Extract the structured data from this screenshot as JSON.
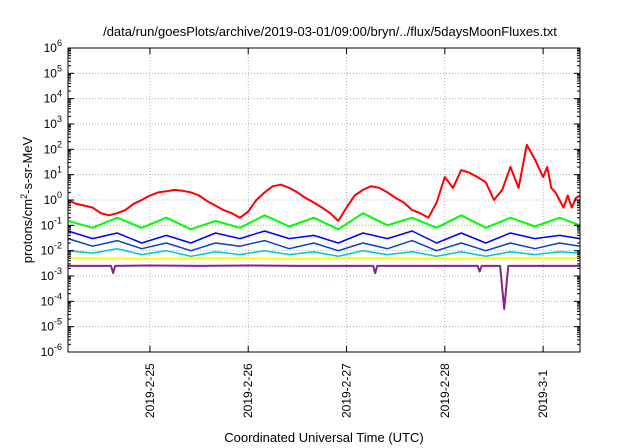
{
  "chart_data": {
    "type": "line",
    "title": "/data/run/goesPlots/archive/2019-03-01/09:00/bryn/../flux/5daysMoonFluxes.txt",
    "xlabel": "Coordinated Universal Time (UTC)",
    "ylabel": {
      "prefix": "protons/cm",
      "superscript": "2",
      "suffix": "-s-sr-MeV"
    },
    "yscale": "log",
    "ylim": [
      1e-06,
      1000000.0
    ],
    "y_ticks": [
      {
        "base": "10",
        "exp": "6",
        "value": 1000000.0
      },
      {
        "base": "10",
        "exp": "5",
        "value": 100000.0
      },
      {
        "base": "10",
        "exp": "4",
        "value": 10000.0
      },
      {
        "base": "10",
        "exp": "3",
        "value": 1000.0
      },
      {
        "base": "10",
        "exp": "2",
        "value": 100.0
      },
      {
        "base": "10",
        "exp": "1",
        "value": 10.0
      },
      {
        "base": "10",
        "exp": "0",
        "value": 1.0
      },
      {
        "base": "10",
        "exp": "-1",
        "value": 0.1
      },
      {
        "base": "10",
        "exp": "-2",
        "value": 0.01
      },
      {
        "base": "10",
        "exp": "-3",
        "value": 0.001
      },
      {
        "base": "10",
        "exp": "-4",
        "value": 0.0001
      },
      {
        "base": "10",
        "exp": "-5",
        "value": 1e-05
      },
      {
        "base": "10",
        "exp": "-6",
        "value": 1e-06
      }
    ],
    "xlim": [
      "2019-02-24 04:00",
      "2019-03-01 09:00"
    ],
    "x_ticks": [
      {
        "label": "2019-2-25",
        "value": "2019-02-25 00:00"
      },
      {
        "label": "2019-2-26",
        "value": "2019-02-26 00:00"
      },
      {
        "label": "2019-2-27",
        "value": "2019-02-27 00:00"
      },
      {
        "label": "2019-2-28",
        "value": "2019-02-28 00:00"
      },
      {
        "label": "2019-3-1",
        "value": "2019-03-01 00:00"
      }
    ],
    "grid": true,
    "series": [
      {
        "color": "#ff0000",
        "width": 2,
        "points": [
          [
            "2019-02-24 04:00",
            1.0
          ],
          [
            "2019-02-24 06:00",
            0.7
          ],
          [
            "2019-02-24 08:00",
            0.6
          ],
          [
            "2019-02-24 10:00",
            0.5
          ],
          [
            "2019-02-24 12:00",
            0.3
          ],
          [
            "2019-02-24 14:00",
            0.25
          ],
          [
            "2019-02-24 16:00",
            0.3
          ],
          [
            "2019-02-24 18:00",
            0.4
          ],
          [
            "2019-02-24 20:00",
            0.7
          ],
          [
            "2019-02-24 22:00",
            1.0
          ],
          [
            "2019-02-25 00:00",
            1.5
          ],
          [
            "2019-02-25 02:00",
            2.0
          ],
          [
            "2019-02-25 04:00",
            2.2
          ],
          [
            "2019-02-25 06:00",
            2.5
          ],
          [
            "2019-02-25 08:00",
            2.3
          ],
          [
            "2019-02-25 10:00",
            2.0
          ],
          [
            "2019-02-25 12:00",
            1.5
          ],
          [
            "2019-02-25 14:00",
            0.9
          ],
          [
            "2019-02-25 16:00",
            0.6
          ],
          [
            "2019-02-25 18:00",
            0.4
          ],
          [
            "2019-02-25 20:00",
            0.3
          ],
          [
            "2019-02-25 22:00",
            0.2
          ],
          [
            "2019-02-26 00:00",
            0.35
          ],
          [
            "2019-02-26 02:00",
            1.0
          ],
          [
            "2019-02-26 04:00",
            2.0
          ],
          [
            "2019-02-26 06:00",
            3.5
          ],
          [
            "2019-02-26 08:00",
            4.0
          ],
          [
            "2019-02-26 10:00",
            3.0
          ],
          [
            "2019-02-26 12:00",
            2.0
          ],
          [
            "2019-02-26 14:00",
            1.2
          ],
          [
            "2019-02-26 16:00",
            0.8
          ],
          [
            "2019-02-26 18:00",
            0.5
          ],
          [
            "2019-02-26 20:00",
            0.3
          ],
          [
            "2019-02-26 22:00",
            0.15
          ],
          [
            "2019-02-27 00:00",
            0.5
          ],
          [
            "2019-02-27 02:00",
            1.5
          ],
          [
            "2019-02-27 04:00",
            2.5
          ],
          [
            "2019-02-27 06:00",
            3.5
          ],
          [
            "2019-02-27 08:00",
            3.0
          ],
          [
            "2019-02-27 10:00",
            2.0
          ],
          [
            "2019-02-27 12:00",
            1.2
          ],
          [
            "2019-02-27 14:00",
            0.8
          ],
          [
            "2019-02-27 16:00",
            0.4
          ],
          [
            "2019-02-27 18:00",
            0.3
          ],
          [
            "2019-02-27 20:00",
            0.2
          ],
          [
            "2019-02-27 22:00",
            0.8
          ],
          [
            "2019-02-28 00:00",
            8
          ],
          [
            "2019-02-28 02:00",
            3
          ],
          [
            "2019-02-28 04:00",
            15
          ],
          [
            "2019-02-28 06:00",
            12
          ],
          [
            "2019-02-28 08:00",
            8
          ],
          [
            "2019-02-28 10:00",
            5
          ],
          [
            "2019-02-28 12:00",
            1.0
          ],
          [
            "2019-02-28 14:00",
            2.5
          ],
          [
            "2019-02-28 16:00",
            20
          ],
          [
            "2019-02-28 18:00",
            3
          ],
          [
            "2019-02-28 20:00",
            150
          ],
          [
            "2019-02-28 22:00",
            40
          ],
          [
            "2019-03-01 00:00",
            8
          ],
          [
            "2019-03-01 01:00",
            20
          ],
          [
            "2019-03-01 02:00",
            3
          ],
          [
            "2019-03-01 03:00",
            2.0
          ],
          [
            "2019-03-01 04:00",
            1.0
          ],
          [
            "2019-03-01 05:00",
            0.5
          ],
          [
            "2019-03-01 06:00",
            1.5
          ],
          [
            "2019-03-01 07:00",
            0.5
          ],
          [
            "2019-03-01 08:00",
            1.2
          ],
          [
            "2019-03-01 09:00",
            1.5
          ]
        ]
      },
      {
        "color": "#00ff00",
        "width": 2,
        "points": [
          [
            "2019-02-24 04:00",
            0.15
          ],
          [
            "2019-02-24 10:00",
            0.08
          ],
          [
            "2019-02-24 16:00",
            0.2
          ],
          [
            "2019-02-24 22:00",
            0.08
          ],
          [
            "2019-02-25 04:00",
            0.2
          ],
          [
            "2019-02-25 10:00",
            0.07
          ],
          [
            "2019-02-25 16:00",
            0.15
          ],
          [
            "2019-02-25 22:00",
            0.08
          ],
          [
            "2019-02-26 04:00",
            0.25
          ],
          [
            "2019-02-26 10:00",
            0.09
          ],
          [
            "2019-02-26 16:00",
            0.2
          ],
          [
            "2019-02-26 22:00",
            0.07
          ],
          [
            "2019-02-27 04:00",
            0.3
          ],
          [
            "2019-02-27 10:00",
            0.1
          ],
          [
            "2019-02-27 16:00",
            0.2
          ],
          [
            "2019-02-27 22:00",
            0.08
          ],
          [
            "2019-02-28 04:00",
            0.25
          ],
          [
            "2019-02-28 10:00",
            0.08
          ],
          [
            "2019-02-28 16:00",
            0.2
          ],
          [
            "2019-02-28 22:00",
            0.09
          ],
          [
            "2019-03-01 04:00",
            0.2
          ],
          [
            "2019-03-01 09:00",
            0.1
          ]
        ]
      },
      {
        "color": "#0000ff",
        "width": 1.5,
        "points": [
          [
            "2019-02-24 04:00",
            0.06
          ],
          [
            "2019-02-24 10:00",
            0.03
          ],
          [
            "2019-02-24 16:00",
            0.05
          ],
          [
            "2019-02-24 22:00",
            0.02
          ],
          [
            "2019-02-25 04:00",
            0.04
          ],
          [
            "2019-02-25 10:00",
            0.02
          ],
          [
            "2019-02-25 16:00",
            0.05
          ],
          [
            "2019-02-25 22:00",
            0.03
          ],
          [
            "2019-02-26 04:00",
            0.06
          ],
          [
            "2019-02-26 10:00",
            0.03
          ],
          [
            "2019-02-26 16:00",
            0.04
          ],
          [
            "2019-02-26 22:00",
            0.02
          ],
          [
            "2019-02-27 04:00",
            0.05
          ],
          [
            "2019-02-27 10:00",
            0.03
          ],
          [
            "2019-02-27 16:00",
            0.06
          ],
          [
            "2019-02-27 22:00",
            0.02
          ],
          [
            "2019-02-28 04:00",
            0.05
          ],
          [
            "2019-02-28 10:00",
            0.02
          ],
          [
            "2019-02-28 16:00",
            0.05
          ],
          [
            "2019-02-28 22:00",
            0.03
          ],
          [
            "2019-03-01 04:00",
            0.04
          ],
          [
            "2019-03-01 09:00",
            0.03
          ]
        ]
      },
      {
        "color": "#1040c0",
        "width": 1.5,
        "points": [
          [
            "2019-02-24 04:00",
            0.03
          ],
          [
            "2019-02-24 10:00",
            0.015
          ],
          [
            "2019-02-24 16:00",
            0.025
          ],
          [
            "2019-02-24 22:00",
            0.012
          ],
          [
            "2019-02-25 04:00",
            0.02
          ],
          [
            "2019-02-25 10:00",
            0.01
          ],
          [
            "2019-02-25 16:00",
            0.02
          ],
          [
            "2019-02-25 22:00",
            0.015
          ],
          [
            "2019-02-26 04:00",
            0.025
          ],
          [
            "2019-02-26 10:00",
            0.012
          ],
          [
            "2019-02-26 16:00",
            0.02
          ],
          [
            "2019-02-26 22:00",
            0.01
          ],
          [
            "2019-02-27 04:00",
            0.02
          ],
          [
            "2019-02-27 10:00",
            0.012
          ],
          [
            "2019-02-27 16:00",
            0.025
          ],
          [
            "2019-02-27 22:00",
            0.01
          ],
          [
            "2019-02-28 04:00",
            0.02
          ],
          [
            "2019-02-28 10:00",
            0.01
          ],
          [
            "2019-02-28 16:00",
            0.02
          ],
          [
            "2019-02-28 22:00",
            0.012
          ],
          [
            "2019-03-01 04:00",
            0.02
          ],
          [
            "2019-03-01 09:00",
            0.015
          ]
        ]
      },
      {
        "color": "#00c8c8",
        "width": 1.5,
        "points": [
          [
            "2019-02-24 04:00",
            0.01
          ],
          [
            "2019-02-24 10:00",
            0.008
          ],
          [
            "2019-02-24 16:00",
            0.012
          ],
          [
            "2019-02-24 22:00",
            0.007
          ],
          [
            "2019-02-25 04:00",
            0.01
          ],
          [
            "2019-02-25 10:00",
            0.006
          ],
          [
            "2019-02-25 16:00",
            0.009
          ],
          [
            "2019-02-25 22:00",
            0.007
          ],
          [
            "2019-02-26 04:00",
            0.01
          ],
          [
            "2019-02-26 10:00",
            0.007
          ],
          [
            "2019-02-26 16:00",
            0.009
          ],
          [
            "2019-02-26 22:00",
            0.006
          ],
          [
            "2019-02-27 04:00",
            0.01
          ],
          [
            "2019-02-27 10:00",
            0.007
          ],
          [
            "2019-02-27 16:00",
            0.009
          ],
          [
            "2019-02-27 22:00",
            0.006
          ],
          [
            "2019-02-28 04:00",
            0.009
          ],
          [
            "2019-02-28 10:00",
            0.006
          ],
          [
            "2019-02-28 16:00",
            0.009
          ],
          [
            "2019-02-28 22:00",
            0.007
          ],
          [
            "2019-03-01 04:00",
            0.009
          ],
          [
            "2019-03-01 09:00",
            0.008
          ]
        ]
      },
      {
        "color": "#ffff00",
        "width": 2,
        "points": [
          [
            "2019-02-24 04:00",
            0.005
          ],
          [
            "2019-02-24 12:00",
            0.005
          ],
          [
            "2019-02-25 00:00",
            0.0048
          ],
          [
            "2019-02-25 12:00",
            0.005
          ],
          [
            "2019-02-26 00:00",
            0.005
          ],
          [
            "2019-02-26 12:00",
            0.0048
          ],
          [
            "2019-02-27 00:00",
            0.005
          ],
          [
            "2019-02-27 12:00",
            0.005
          ],
          [
            "2019-02-28 00:00",
            0.0048
          ],
          [
            "2019-02-28 12:00",
            0.005
          ],
          [
            "2019-03-01 00:00",
            0.005
          ],
          [
            "2019-03-01 09:00",
            0.005
          ]
        ]
      },
      {
        "color": "#882288",
        "width": 2,
        "points": [
          [
            "2019-02-24 04:00",
            0.0025
          ],
          [
            "2019-02-24 12:00",
            0.0025
          ],
          [
            "2019-02-24 14:30",
            0.0025
          ],
          [
            "2019-02-24 15:00",
            0.0013
          ],
          [
            "2019-02-24 15:30",
            0.0025
          ],
          [
            "2019-02-25 00:00",
            0.0026
          ],
          [
            "2019-02-25 12:00",
            0.0025
          ],
          [
            "2019-02-26 00:00",
            0.0026
          ],
          [
            "2019-02-26 12:00",
            0.0025
          ],
          [
            "2019-02-27 00:00",
            0.0025
          ],
          [
            "2019-02-27 06:30",
            0.0025
          ],
          [
            "2019-02-27 07:00",
            0.0013
          ],
          [
            "2019-02-27 07:30",
            0.0025
          ],
          [
            "2019-02-28 00:00",
            0.0025
          ],
          [
            "2019-02-28 08:00",
            0.0025
          ],
          [
            "2019-02-28 08:30",
            0.0015
          ],
          [
            "2019-02-28 09:00",
            0.0025
          ],
          [
            "2019-02-28 13:30",
            0.0025
          ],
          [
            "2019-02-28 14:30",
            5e-05
          ],
          [
            "2019-02-28 15:30",
            0.0025
          ],
          [
            "2019-03-01 00:00",
            0.0025
          ],
          [
            "2019-03-01 09:00",
            0.0025
          ]
        ]
      }
    ]
  }
}
